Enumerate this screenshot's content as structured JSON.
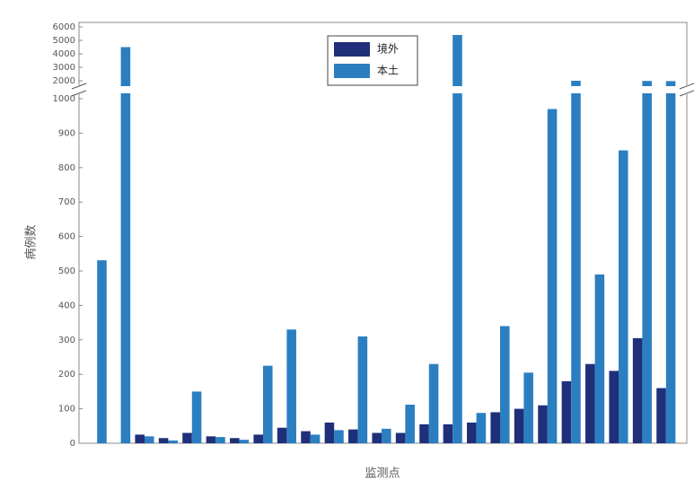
{
  "chart_data": {
    "type": "bar",
    "categories": [
      null,
      null,
      null,
      null,
      null,
      null,
      null,
      null,
      null,
      null,
      null,
      null,
      null,
      null,
      null,
      null,
      null,
      null,
      null,
      null,
      null,
      null,
      null,
      null,
      null
    ],
    "series": [
      {
        "name": "境外",
        "color": "#1f2f7a",
        "values": [
          0,
          0,
          25,
          15,
          30,
          20,
          15,
          25,
          45,
          35,
          60,
          40,
          30,
          30,
          55,
          55,
          60,
          90,
          100,
          110,
          180,
          230,
          210,
          305,
          160
        ]
      },
      {
        "name": "本土",
        "color": "#2b7fc1",
        "values": [
          531,
          4500,
          20,
          8,
          150,
          18,
          10,
          225,
          330,
          25,
          38,
          310,
          42,
          112,
          230,
          5400,
          88,
          340,
          205,
          970,
          2000,
          490,
          850,
          1990,
          1980
        ]
      }
    ],
    "ylim": [
      0,
      6000
    ],
    "ybreak": [
      1000,
      2000
    ],
    "yticks": [
      0,
      100,
      200,
      300,
      400,
      500,
      600,
      700,
      800,
      900,
      1000,
      2000,
      3000,
      4000,
      5000,
      6000
    ],
    "ylabel": "病例数",
    "xlabel": "监测点",
    "legend": "top"
  }
}
